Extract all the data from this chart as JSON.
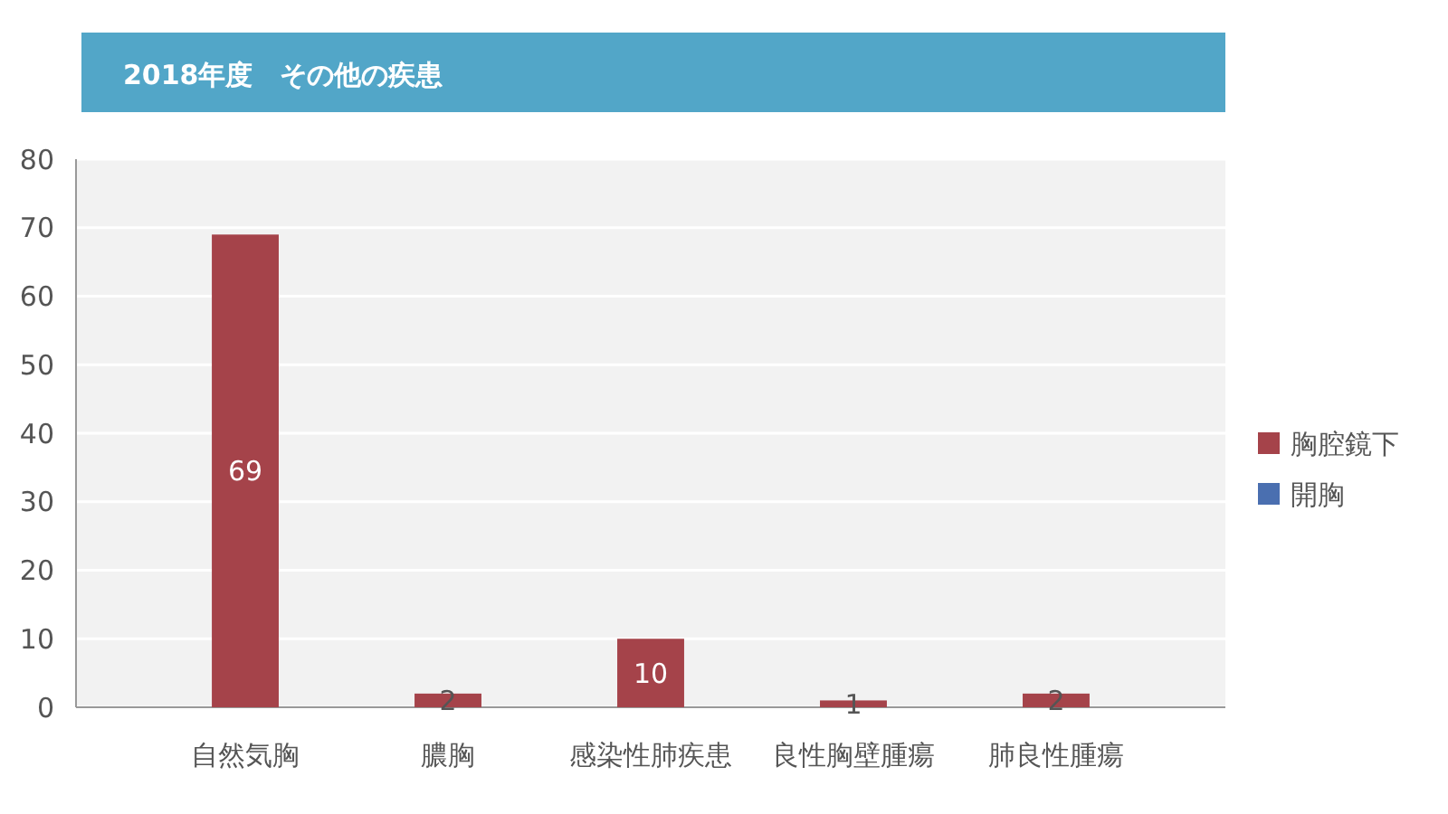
{
  "chart_data": {
    "type": "bar",
    "title": "2018年度　その他の疾患",
    "categories": [
      "自然気胸",
      "膿胸",
      "感染性肺疾患",
      "良性胸壁腫瘍",
      "肺良性腫瘍"
    ],
    "series": [
      {
        "name": "胸腔鏡下",
        "color": "#a5434a",
        "values": [
          69,
          2,
          10,
          1,
          2
        ]
      },
      {
        "name": "開胸",
        "color": "#4a6fb0",
        "values": [
          null,
          null,
          null,
          null,
          null
        ]
      }
    ],
    "stacked": true,
    "ylim": [
      0,
      80
    ],
    "yticks": [
      0,
      10,
      20,
      30,
      40,
      50,
      60,
      70,
      80
    ],
    "grid": "y",
    "legend": "right",
    "data_labels": true
  }
}
